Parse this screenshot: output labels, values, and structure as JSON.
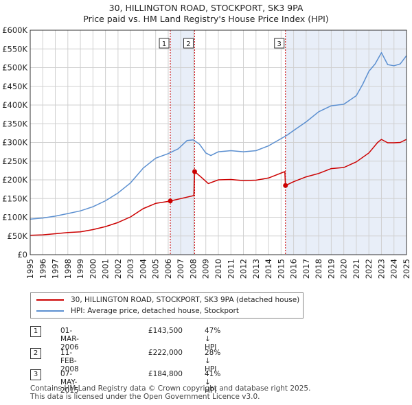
{
  "title": {
    "line1": "30, HILLINGTON ROAD, STOCKPORT, SK3 9PA",
    "line2": "Price paid vs. HM Land Registry's House Price Index (HPI)"
  },
  "legend": {
    "property": "30, HILLINGTON ROAD, STOCKPORT, SK3 9PA (detached house)",
    "hpi": "HPI: Average price, detached house, Stockport"
  },
  "transactions": [
    {
      "num": "1",
      "date": "01-MAR-2006",
      "price": "£143,500",
      "hpi_rel": "47% ↓ HPI"
    },
    {
      "num": "2",
      "date": "11-FEB-2008",
      "price": "£222,000",
      "hpi_rel": "28% ↓ HPI"
    },
    {
      "num": "3",
      "date": "07-MAY-2015",
      "price": "£184,800",
      "hpi_rel": "41% ↓ HPI"
    }
  ],
  "footer": {
    "line1": "Contains HM Land Registry data © Crown copyright and database right 2025.",
    "line2": "This data is licensed under the Open Government Licence v3.0."
  },
  "colors": {
    "property": "#cc0000",
    "hpi": "#5b8fd0",
    "shade": "#e8eef8",
    "grid": "#d0d0d0"
  },
  "chart_data": {
    "type": "line",
    "title": "Price paid vs. HM Land Registry's House Price Index (HPI)",
    "xlabel": "",
    "ylabel": "",
    "xlim": [
      1995,
      2025
    ],
    "ylim": [
      0,
      600000
    ],
    "x_ticks": [
      1995,
      1996,
      1997,
      1998,
      1999,
      2000,
      2001,
      2002,
      2003,
      2004,
      2005,
      2006,
      2007,
      2008,
      2009,
      2010,
      2011,
      2012,
      2013,
      2014,
      2015,
      2016,
      2017,
      2018,
      2019,
      2020,
      2021,
      2022,
      2023,
      2024,
      2025
    ],
    "y_ticks": [
      0,
      50000,
      100000,
      150000,
      200000,
      250000,
      300000,
      350000,
      400000,
      450000,
      500000,
      550000,
      600000
    ],
    "y_tick_labels": [
      "£0",
      "£50K",
      "£100K",
      "£150K",
      "£200K",
      "£250K",
      "£300K",
      "£350K",
      "£400K",
      "£450K",
      "£500K",
      "£550K",
      "£600K"
    ],
    "grid": true,
    "shaded_ranges": [
      [
        2006.17,
        2008.11
      ],
      [
        2015.35,
        2025.0
      ]
    ],
    "sale_markers": [
      {
        "label": "1",
        "x": 2006.17,
        "y": 143500
      },
      {
        "label": "2",
        "x": 2008.11,
        "y": 222000
      },
      {
        "label": "3",
        "x": 2015.35,
        "y": 184800
      }
    ],
    "series": [
      {
        "name": "30, HILLINGTON ROAD, STOCKPORT, SK3 9PA (detached house)",
        "x": [
          1995,
          1996,
          1997,
          1998,
          1999,
          2000,
          2001,
          2002,
          2003,
          2004,
          2005,
          2006.1,
          2006.17,
          2007,
          2008.05,
          2008.11,
          2008.6,
          2009.2,
          2010,
          2011,
          2012,
          2013,
          2014,
          2015.3,
          2015.35,
          2016,
          2017,
          2018,
          2019,
          2020,
          2021,
          2022,
          2022.7,
          2023,
          2023.5,
          2024,
          2024.5,
          2025
        ],
        "values": [
          52000,
          53000,
          56000,
          59000,
          61000,
          67000,
          75000,
          86000,
          101000,
          123000,
          137000,
          143000,
          143500,
          150000,
          158000,
          222000,
          208000,
          190000,
          200000,
          201000,
          198000,
          199000,
          205000,
          222000,
          184800,
          195000,
          208000,
          217000,
          230000,
          233000,
          248000,
          272000,
          300000,
          308000,
          299000,
          299000,
          300000,
          308000
        ]
      },
      {
        "name": "HPI: Average price, detached house, Stockport",
        "x": [
          1995,
          1996,
          1997,
          1998,
          1999,
          2000,
          2001,
          2002,
          2003,
          2004,
          2005,
          2006,
          2006.8,
          2007.5,
          2008,
          2008.5,
          2009,
          2009.4,
          2010,
          2011,
          2012,
          2013,
          2014,
          2015,
          2015.5,
          2016,
          2017,
          2018,
          2019,
          2020,
          2021,
          2021.5,
          2022,
          2022.5,
          2023,
          2023.5,
          2024,
          2024.5,
          2025
        ],
        "values": [
          95000,
          98000,
          103000,
          110000,
          117000,
          128000,
          144000,
          165000,
          192000,
          231000,
          258000,
          270000,
          283000,
          305000,
          307000,
          295000,
          272000,
          265000,
          275000,
          278000,
          275000,
          278000,
          291000,
          310000,
          320000,
          332000,
          355000,
          382000,
          398000,
          402000,
          425000,
          455000,
          490000,
          510000,
          540000,
          508000,
          505000,
          510000,
          532000
        ]
      }
    ]
  }
}
